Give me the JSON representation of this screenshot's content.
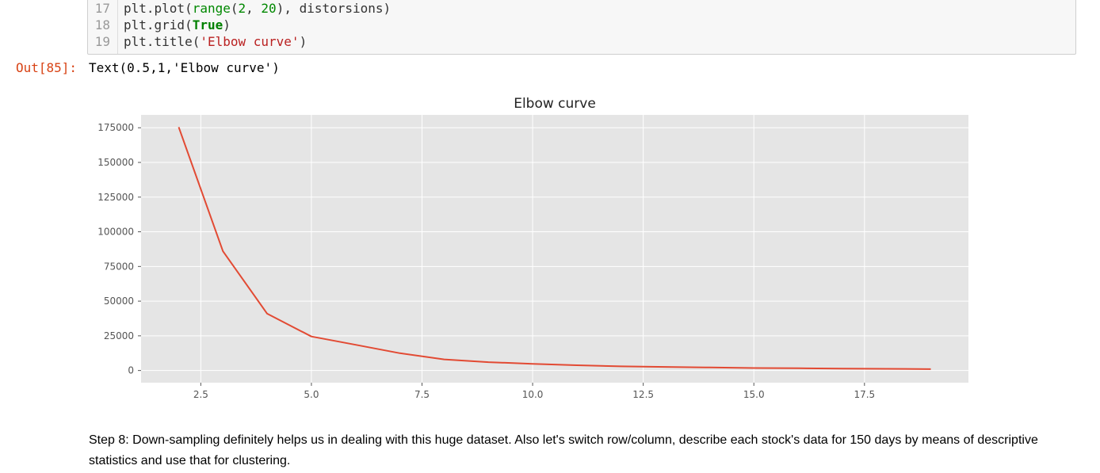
{
  "code_cell": {
    "lines": [
      {
        "num": "17",
        "parts": [
          [
            "",
            "plt.plot("
          ],
          [
            "n",
            "range"
          ],
          [
            "",
            "("
          ],
          [
            "n",
            "2"
          ],
          [
            "",
            ", "
          ],
          [
            "n",
            "20"
          ],
          [
            "",
            "), distorsions)"
          ]
        ]
      },
      {
        "num": "18",
        "parts": [
          [
            "",
            "plt.grid("
          ],
          [
            "k",
            "True"
          ],
          [
            "",
            ")"
          ]
        ]
      },
      {
        "num": "19",
        "parts": [
          [
            "",
            "plt.title("
          ],
          [
            "s",
            "'Elbow curve'"
          ],
          [
            "",
            ")"
          ]
        ]
      }
    ]
  },
  "output": {
    "prompt": "Out[85]:",
    "text": "Text(0.5,1,'Elbow curve')"
  },
  "chart_data": {
    "type": "line",
    "title": "Elbow curve",
    "xlabel": "",
    "ylabel": "",
    "x": [
      2,
      3,
      4,
      5,
      6,
      7,
      8,
      9,
      10,
      11,
      12,
      13,
      14,
      15,
      16,
      17,
      18,
      19
    ],
    "series": [
      {
        "values": [
          175500,
          86000,
          41000,
          24500,
          18500,
          12500,
          8000,
          6000,
          4800,
          3800,
          3000,
          2600,
          2200,
          1800,
          1600,
          1400,
          1200,
          1000
        ]
      }
    ],
    "xlim": [
      1.15,
      19.85
    ],
    "ylim": [
      -8775,
      184275
    ],
    "xticks": [
      2.5,
      5.0,
      7.5,
      10.0,
      12.5,
      15.0,
      17.5
    ],
    "xtick_labels": [
      "2.5",
      "5.0",
      "7.5",
      "10.0",
      "12.5",
      "15.0",
      "17.5"
    ],
    "yticks": [
      0,
      25000,
      50000,
      75000,
      100000,
      125000,
      150000,
      175000
    ],
    "ytick_labels": [
      "0",
      "25000",
      "50000",
      "75000",
      "100000",
      "125000",
      "150000",
      "175000"
    ],
    "grid": true,
    "colors": {
      "line": "#e24a33",
      "background": "#e5e5e5",
      "grid": "#ffffff"
    }
  },
  "markdown": {
    "text": "Step 8: Down-sampling definitely helps us in dealing with this huge dataset. Also let's switch row/column, describe each stock's data for 150 days by means of descriptive statistics and use that for clustering."
  }
}
